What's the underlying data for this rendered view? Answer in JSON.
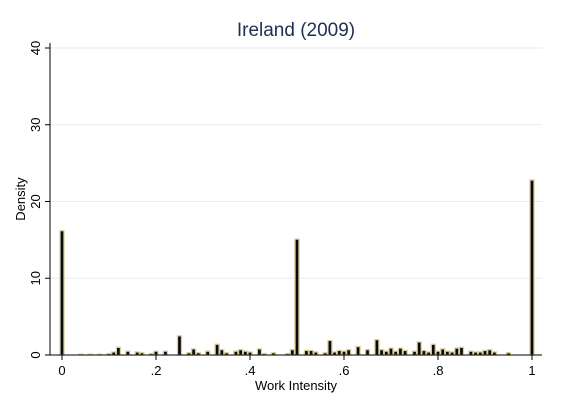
{
  "chart_data": {
    "type": "bar",
    "title": "Ireland (2009)",
    "xlabel": "Work Intensity",
    "ylabel": "Density",
    "xlim": [
      0,
      1
    ],
    "ylim": [
      0,
      40
    ],
    "xticks": [
      0,
      0.2,
      0.4,
      0.6,
      0.8,
      1
    ],
    "xtick_labels": [
      "0",
      ".2",
      ".4",
      ".6",
      ".8",
      "1"
    ],
    "yticks": [
      0,
      10,
      20,
      30,
      40
    ],
    "ytick_labels": [
      "0",
      "10",
      "20",
      "30",
      "40"
    ],
    "grid": true,
    "bin_width": 0.01,
    "bar_fill": "#0a0a0a",
    "bar_edge": "#d9cf9e",
    "x": [
      0.0,
      0.04,
      0.06,
      0.08,
      0.1,
      0.11,
      0.12,
      0.14,
      0.16,
      0.17,
      0.19,
      0.2,
      0.22,
      0.25,
      0.27,
      0.28,
      0.29,
      0.31,
      0.33,
      0.34,
      0.35,
      0.37,
      0.38,
      0.39,
      0.4,
      0.42,
      0.43,
      0.45,
      0.48,
      0.49,
      0.5,
      0.52,
      0.53,
      0.54,
      0.56,
      0.57,
      0.58,
      0.59,
      0.6,
      0.61,
      0.63,
      0.65,
      0.67,
      0.68,
      0.69,
      0.7,
      0.71,
      0.72,
      0.73,
      0.75,
      0.76,
      0.77,
      0.78,
      0.79,
      0.8,
      0.81,
      0.82,
      0.83,
      0.84,
      0.85,
      0.87,
      0.88,
      0.89,
      0.9,
      0.91,
      0.92,
      0.95,
      1.0
    ],
    "values": [
      16.2,
      0.1,
      0.1,
      0.1,
      0.2,
      0.4,
      1.0,
      0.5,
      0.4,
      0.3,
      0.2,
      0.5,
      0.5,
      2.5,
      0.3,
      0.8,
      0.3,
      0.5,
      1.4,
      0.7,
      0.3,
      0.5,
      0.7,
      0.5,
      0.4,
      0.8,
      0.2,
      0.3,
      0.2,
      0.7,
      15.1,
      0.6,
      0.6,
      0.4,
      0.3,
      1.9,
      0.4,
      0.6,
      0.5,
      0.7,
      1.1,
      0.7,
      2.0,
      0.7,
      0.5,
      0.9,
      0.5,
      0.9,
      0.6,
      0.5,
      1.7,
      0.6,
      0.4,
      1.4,
      0.5,
      0.8,
      0.5,
      0.4,
      0.9,
      1.0,
      0.5,
      0.4,
      0.4,
      0.6,
      0.7,
      0.4,
      0.3,
      22.8
    ]
  }
}
